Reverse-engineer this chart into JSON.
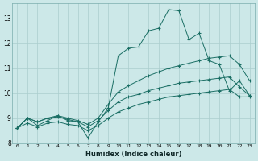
{
  "title": "",
  "xlabel": "Humidex (Indice chaleur)",
  "bg_color": "#cce8e8",
  "grid_color": "#aacece",
  "line_color": "#1a6e64",
  "xlim": [
    -0.5,
    23.5
  ],
  "ylim": [
    8.0,
    13.6
  ],
  "yticks": [
    8,
    9,
    10,
    11,
    12,
    13
  ],
  "xticks": [
    0,
    1,
    2,
    3,
    4,
    5,
    6,
    7,
    8,
    9,
    10,
    11,
    12,
    13,
    14,
    15,
    16,
    17,
    18,
    19,
    20,
    21,
    22,
    23
  ],
  "series": [
    [
      8.6,
      9.0,
      8.7,
      8.9,
      9.1,
      8.9,
      8.85,
      8.2,
      8.85,
      9.4,
      11.5,
      11.8,
      11.85,
      12.5,
      12.6,
      13.35,
      13.3,
      12.15,
      12.4,
      11.3,
      11.15,
      10.1,
      10.5,
      9.9
    ],
    [
      8.6,
      9.0,
      8.85,
      9.0,
      9.1,
      9.0,
      8.9,
      8.75,
      9.0,
      9.55,
      10.05,
      10.3,
      10.5,
      10.7,
      10.85,
      11.0,
      11.1,
      11.2,
      11.3,
      11.4,
      11.45,
      11.5,
      11.15,
      10.5
    ],
    [
      8.6,
      9.0,
      8.85,
      9.0,
      9.05,
      8.95,
      8.85,
      8.65,
      8.9,
      9.3,
      9.65,
      9.85,
      9.95,
      10.1,
      10.2,
      10.3,
      10.4,
      10.45,
      10.5,
      10.55,
      10.6,
      10.65,
      10.25,
      9.9
    ],
    [
      8.6,
      8.8,
      8.65,
      8.8,
      8.85,
      8.75,
      8.7,
      8.5,
      8.7,
      9.0,
      9.25,
      9.4,
      9.55,
      9.65,
      9.75,
      9.85,
      9.9,
      9.95,
      10.0,
      10.05,
      10.1,
      10.15,
      9.85,
      9.85
    ]
  ]
}
